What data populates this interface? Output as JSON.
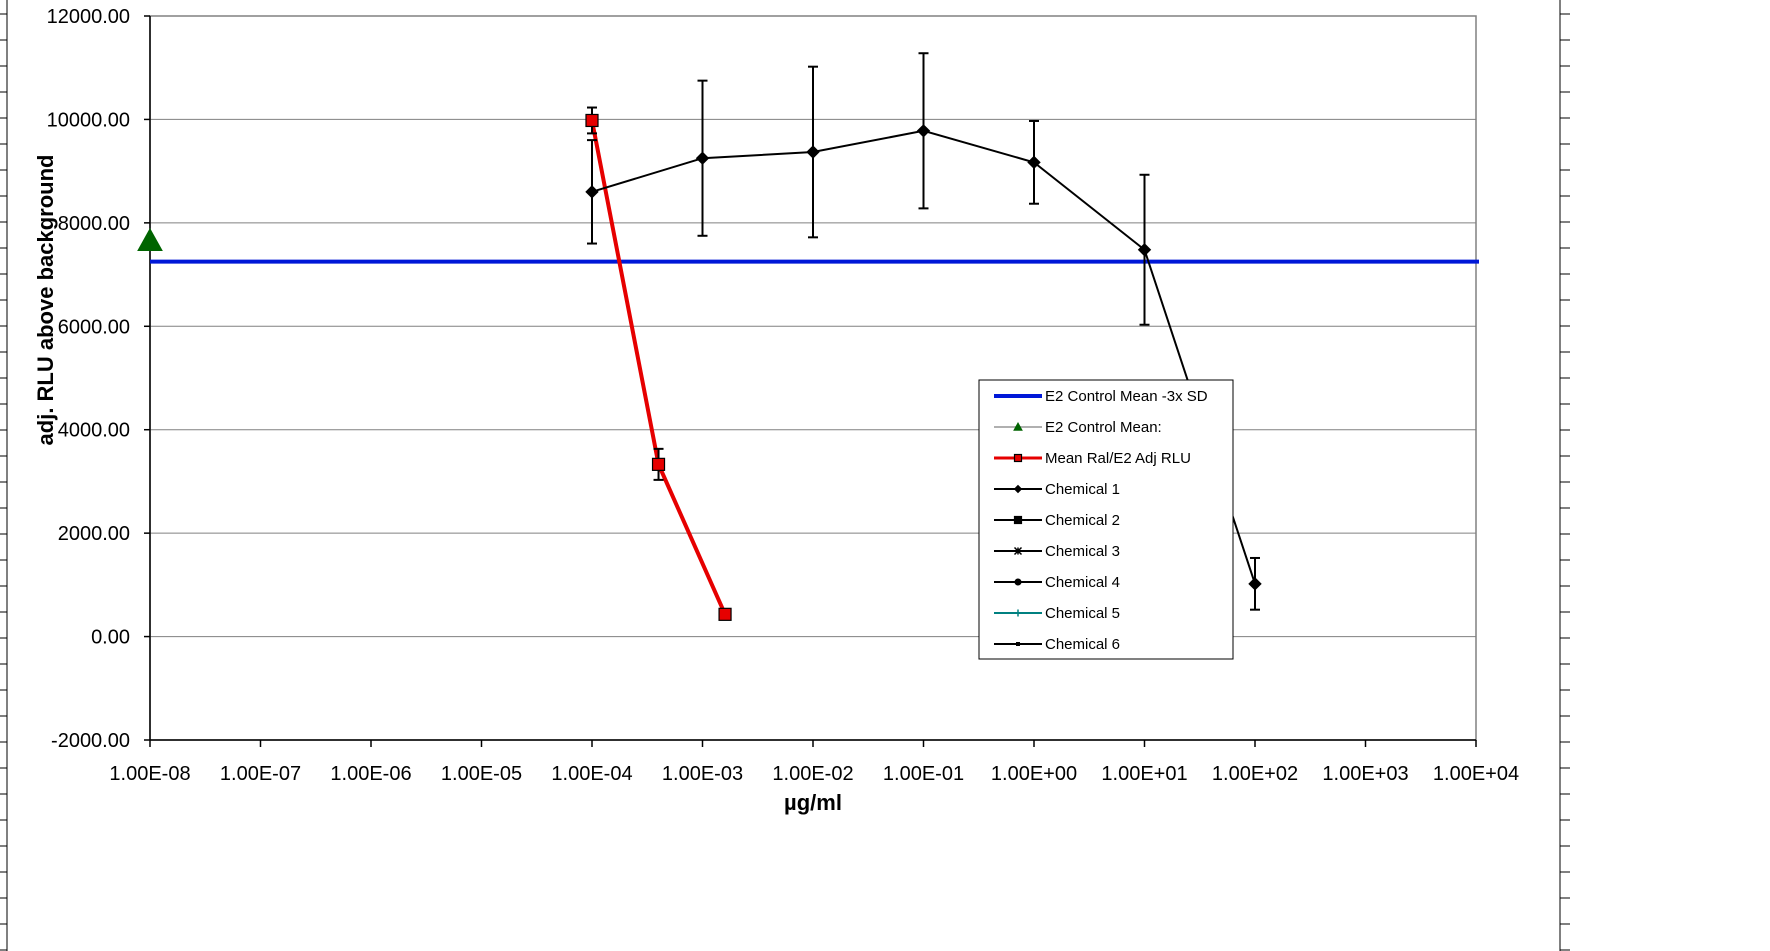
{
  "chart_data": {
    "type": "scatter",
    "xscale": "log",
    "xlabel": "µg/ml",
    "ylabel": "adj. RLU above background",
    "xlim": [
      1e-08,
      10000
    ],
    "ylim": [
      -2000,
      12000
    ],
    "grid": "horizontal",
    "legend_position": "right-center",
    "x_tick_labels": [
      "1.00E-08",
      "1.00E-07",
      "1.00E-06",
      "1.00E-05",
      "1.00E-04",
      "1.00E-03",
      "1.00E-02",
      "1.00E-01",
      "1.00E+00",
      "1.00E+01",
      "1.00E+02",
      "1.00E+03",
      "1.00E+04"
    ],
    "y_tick_labels": [
      "12000.00",
      "10000.00",
      "8000.00",
      "6000.00",
      "4000.00",
      "2000.00",
      "0.00",
      "-2000.00"
    ],
    "series": [
      {
        "name": "E2 Control Mean -3x SD",
        "color": "#0018d8",
        "kind": "hline",
        "y": 7250
      },
      {
        "name": "E2 Control Mean:",
        "color": "#006400",
        "marker": "triangle",
        "x": [
          1e-08
        ],
        "y": [
          7650
        ]
      },
      {
        "name": "Mean Ral/E2 Adj RLU",
        "color": "#e60000",
        "marker": "square",
        "x": [
          0.0001,
          0.0004,
          0.0016
        ],
        "y": [
          9980,
          3330,
          430
        ],
        "err": [
          250,
          300,
          0
        ]
      },
      {
        "name": "Chemical 1",
        "color": "#000000",
        "marker": "diamond",
        "x": [
          0.0001,
          0.001,
          0.01,
          0.1,
          1,
          10,
          100
        ],
        "y": [
          8600,
          9250,
          9370,
          9780,
          9170,
          7480,
          1020
        ],
        "err": [
          1000,
          1500,
          1650,
          1500,
          800,
          1450,
          500
        ]
      },
      {
        "name": "Chemical 2",
        "color": "#000000",
        "marker": "square",
        "x": [],
        "y": []
      },
      {
        "name": "Chemical 3",
        "color": "#000000",
        "marker": "star",
        "x": [],
        "y": []
      },
      {
        "name": "Chemical 4",
        "color": "#000000",
        "marker": "circle",
        "x": [],
        "y": []
      },
      {
        "name": "Chemical 5",
        "color": "#008080",
        "marker": "plus",
        "x": [],
        "y": []
      },
      {
        "name": "Chemical 6",
        "color": "#000000",
        "marker": "dash",
        "x": [],
        "y": []
      }
    ]
  }
}
